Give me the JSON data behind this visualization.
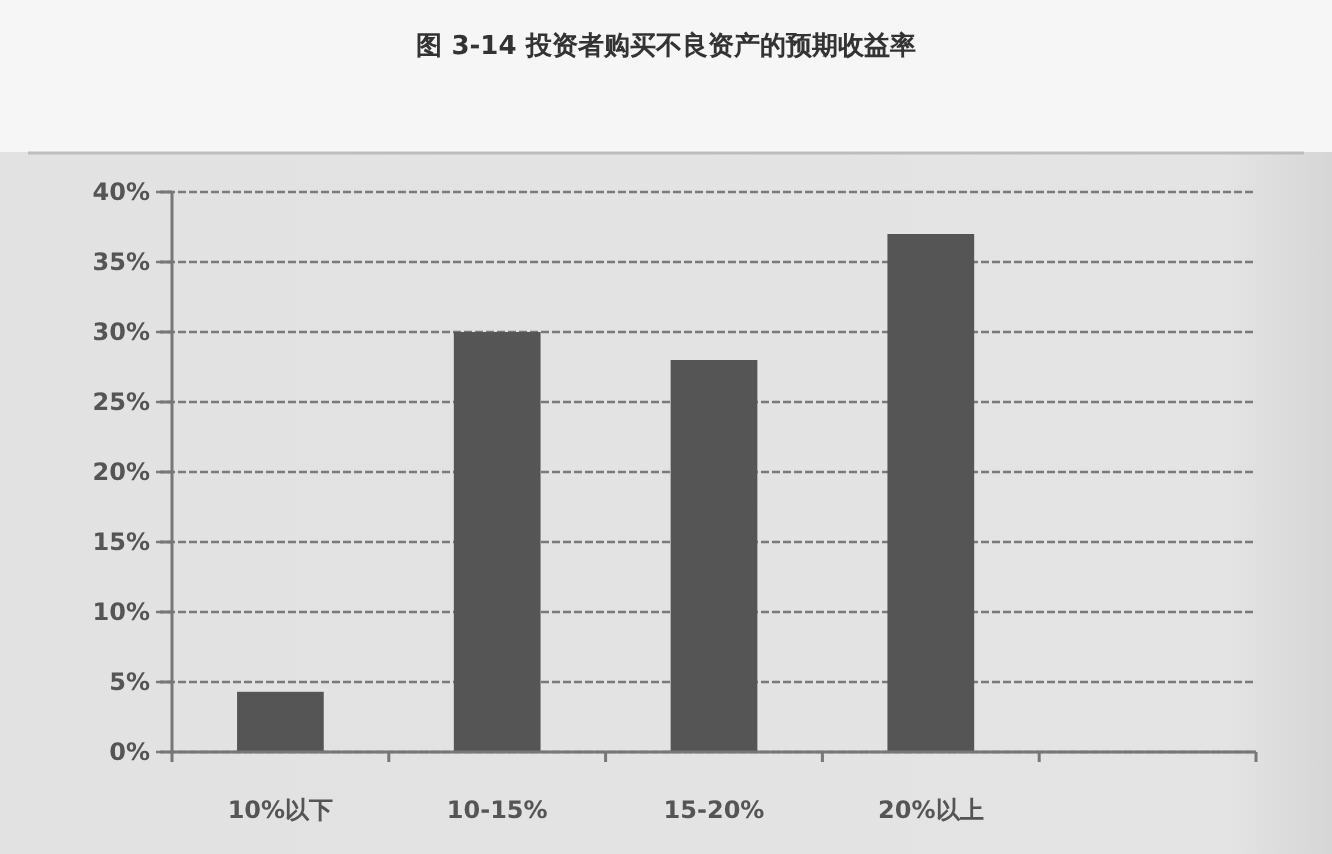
{
  "chart_data": {
    "type": "bar",
    "title": "图 3-14 投资者购买不良资产的预期收益率",
    "categories": [
      "10%以下",
      "10-15%",
      "15-20%",
      "20%以上",
      null
    ],
    "values": [
      4.3,
      30,
      28,
      37,
      null
    ],
    "color": "#555555",
    "ylim": [
      0,
      40
    ],
    "yticks": [
      {
        "value": 0,
        "label": "0%"
      },
      {
        "value": 5,
        "label": "5%"
      },
      {
        "value": 10,
        "label": "10%"
      },
      {
        "value": 15,
        "label": "15%"
      },
      {
        "value": 20,
        "label": "20%"
      },
      {
        "value": 25,
        "label": "25%"
      },
      {
        "value": 30,
        "label": "30%"
      },
      {
        "value": 35,
        "label": "35%"
      },
      {
        "value": 40,
        "label": "40%"
      }
    ],
    "grid": "y"
  }
}
